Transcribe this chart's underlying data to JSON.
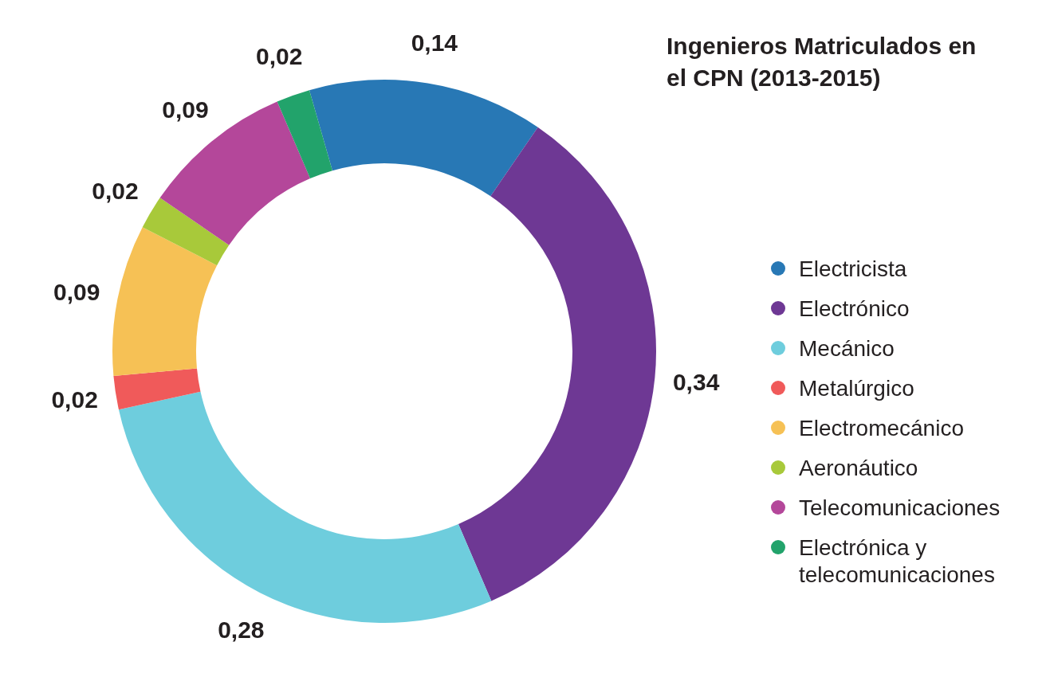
{
  "chart_data": {
    "type": "donut",
    "title": "Ingenieros Matriculados en el CPN (2013-2015)",
    "categories": [
      "Electricista",
      "Electrónico",
      "Mecánico",
      "Metalúrgico",
      "Electromecánico",
      "Aeronáutico",
      "Telecomunicaciones",
      "Electrónica y telecomunicaciones"
    ],
    "values": [
      0.14,
      0.34,
      0.28,
      0.02,
      0.09,
      0.02,
      0.09,
      0.02
    ],
    "value_labels": [
      "0,14",
      "0,34",
      "0,28",
      "0,02",
      "0,09",
      "0,02",
      "0,09",
      "0,02"
    ],
    "colors": [
      "#2878b5",
      "#6e3894",
      "#6ecddd",
      "#f05a5a",
      "#f6c155",
      "#a8c93a",
      "#b4479a",
      "#22a36b"
    ],
    "legend": "right"
  }
}
